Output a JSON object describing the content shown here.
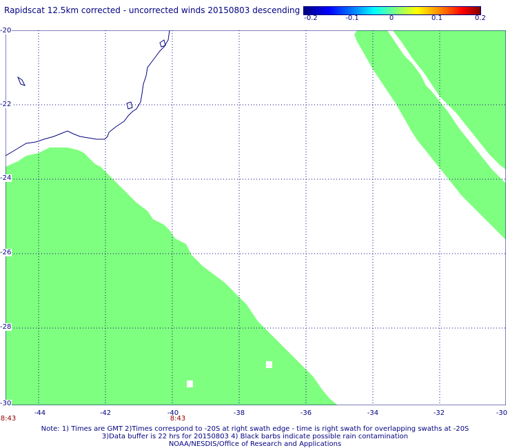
{
  "title": "Rapidscat 12.5km corrected - uncorrected winds 20150803 descending",
  "colorbar": {
    "ticks": [
      "-0.2",
      "-0.1",
      "0",
      "0.1",
      "0.2"
    ]
  },
  "map": {
    "lon_range": [
      -45,
      -30
    ],
    "lat_range": [
      -30,
      -20
    ],
    "lat_labels": [
      "-20",
      "-22",
      "-24",
      "-26",
      "-28",
      "-30"
    ],
    "lon_labels": [
      "-44",
      "-42",
      "-40",
      "-38",
      "-36",
      "-34",
      "-32",
      "-30"
    ],
    "time_labels": [
      "8:43",
      "8:43"
    ],
    "swath_color": "#7fff7f",
    "coast_color": "#000080",
    "grid_color": "#000080"
  },
  "notes": [
    "Note: 1) Times are GMT 2)Times correspond to -20S at right swath edge - time is right swath for overlapping swaths at -20S",
    "3)Data buffer is 22 hrs for 20150803 4) Black barbs indicate possible rain contamination",
    "NOAA/NESDIS/Office of Research and Applications"
  ]
}
